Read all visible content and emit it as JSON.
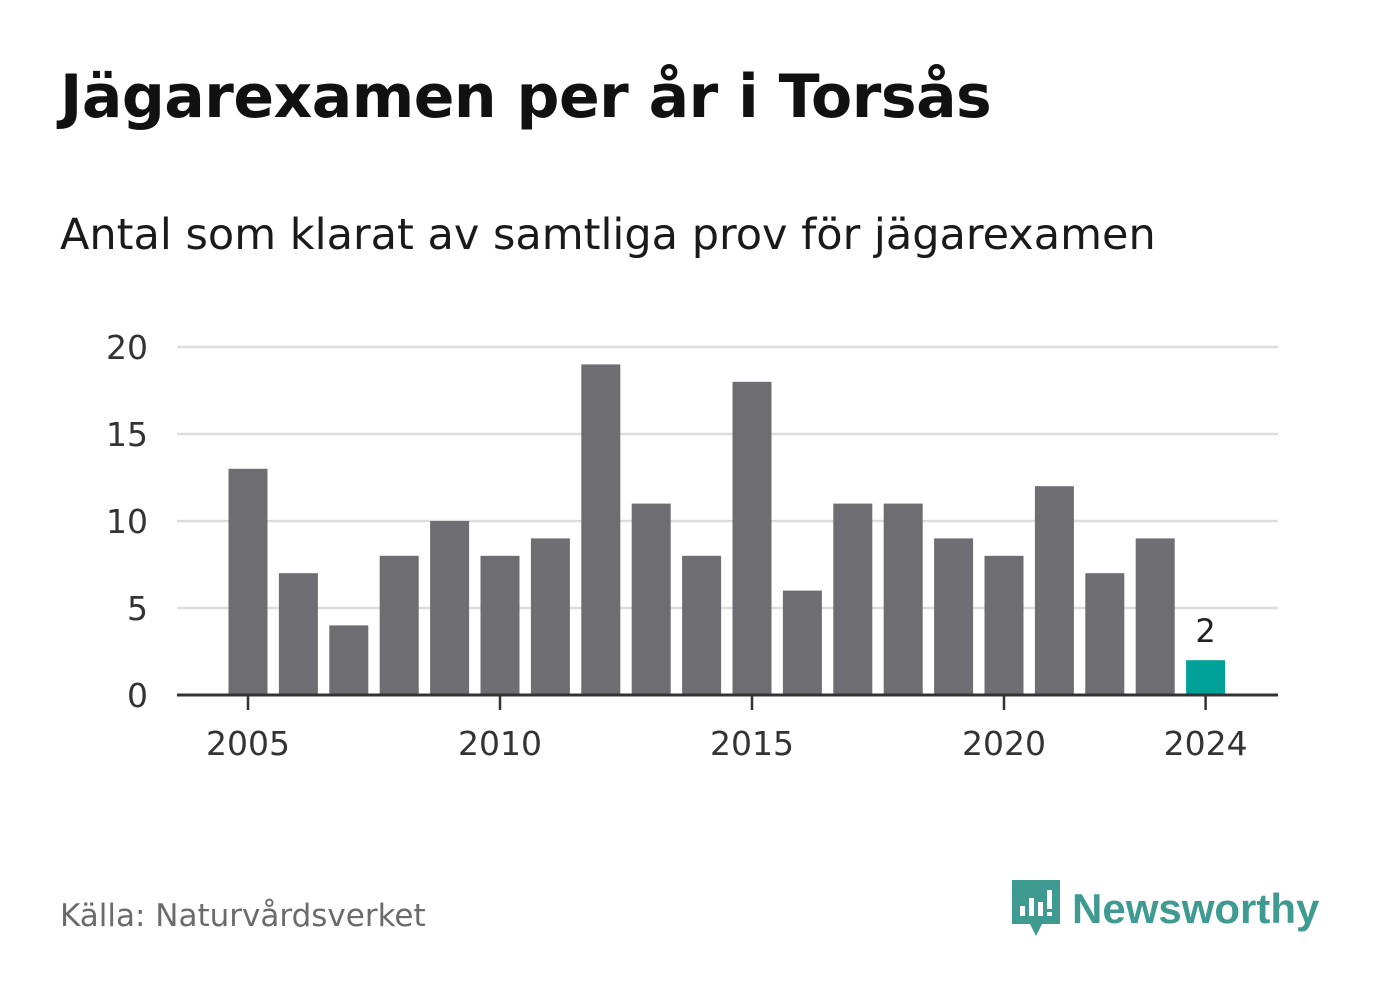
{
  "title": "Jägarexamen per år i Torsås",
  "subtitle": "Antal som klarat av samtliga prov för jägarexamen",
  "source": "Källa: Naturvårdsverket",
  "brand": {
    "name": "Newsworthy",
    "icon": "newsworthy-logo-icon"
  },
  "colors": {
    "bar": "#6e6d72",
    "highlight": "#00a199",
    "grid": "#dddddd",
    "axis": "#333333"
  },
  "chart_data": {
    "type": "bar",
    "x": [
      2005,
      2006,
      2007,
      2008,
      2009,
      2010,
      2011,
      2012,
      2013,
      2014,
      2015,
      2016,
      2017,
      2018,
      2019,
      2020,
      2021,
      2022,
      2023,
      2024
    ],
    "values": [
      13,
      7,
      4,
      8,
      10,
      8,
      9,
      19,
      11,
      8,
      18,
      6,
      11,
      11,
      9,
      8,
      12,
      7,
      9,
      2
    ],
    "xticks": [
      "2005",
      "2010",
      "2015",
      "2020",
      "2024"
    ],
    "yticks": [
      "0",
      "5",
      "10",
      "15",
      "20"
    ],
    "ylim": [
      0,
      20
    ],
    "highlight": {
      "x": 2024,
      "label": "2"
    },
    "grid": true
  }
}
